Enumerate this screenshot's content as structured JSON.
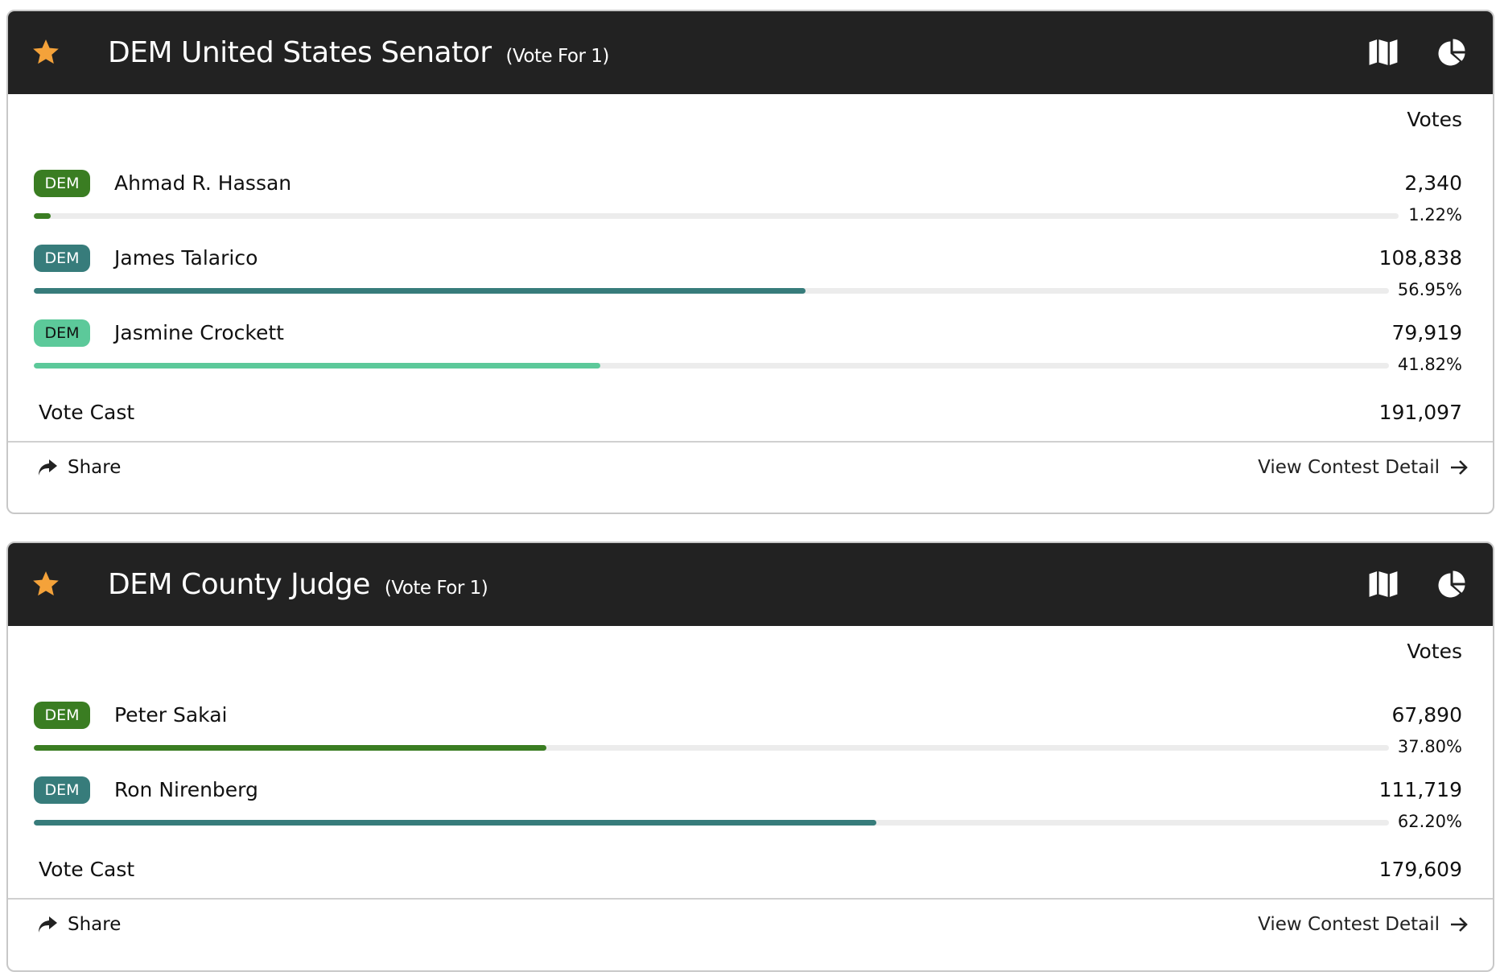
{
  "colors": {
    "header": "#222222",
    "star": "#f4a23a",
    "dark_green": "#3a7d22",
    "teal": "#377c7b",
    "light_green": "#5cc99a"
  },
  "contests": [
    {
      "title": "DEM United States Senator",
      "vote_for": "(Vote For 1)",
      "votes_label": "Votes",
      "candidates": [
        {
          "party": "DEM",
          "name": "Ahmad R. Hassan",
          "votes": "2,340",
          "percent": "1.22%",
          "pct_value": 1.22,
          "color": "#3a7d22",
          "badge_text": "#ffffff"
        },
        {
          "party": "DEM",
          "name": "James Talarico",
          "votes": "108,838",
          "percent": "56.95%",
          "pct_value": 56.95,
          "color": "#377c7b",
          "badge_text": "#ffffff"
        },
        {
          "party": "DEM",
          "name": "Jasmine Crockett",
          "votes": "79,919",
          "percent": "41.82%",
          "pct_value": 41.82,
          "color": "#5cc99a",
          "badge_text": "#111111"
        }
      ],
      "vote_cast_label": "Vote Cast",
      "vote_cast": "191,097",
      "share_label": "Share",
      "detail_label": "View Contest Detail"
    },
    {
      "title": "DEM County Judge",
      "vote_for": "(Vote For 1)",
      "votes_label": "Votes",
      "candidates": [
        {
          "party": "DEM",
          "name": "Peter Sakai",
          "votes": "67,890",
          "percent": "37.80%",
          "pct_value": 37.8,
          "color": "#3a7d22",
          "badge_text": "#ffffff"
        },
        {
          "party": "DEM",
          "name": "Ron Nirenberg",
          "votes": "111,719",
          "percent": "62.20%",
          "pct_value": 62.2,
          "color": "#377c7b",
          "badge_text": "#ffffff"
        }
      ],
      "vote_cast_label": "Vote Cast",
      "vote_cast": "179,609",
      "share_label": "Share",
      "detail_label": "View Contest Detail"
    }
  ]
}
